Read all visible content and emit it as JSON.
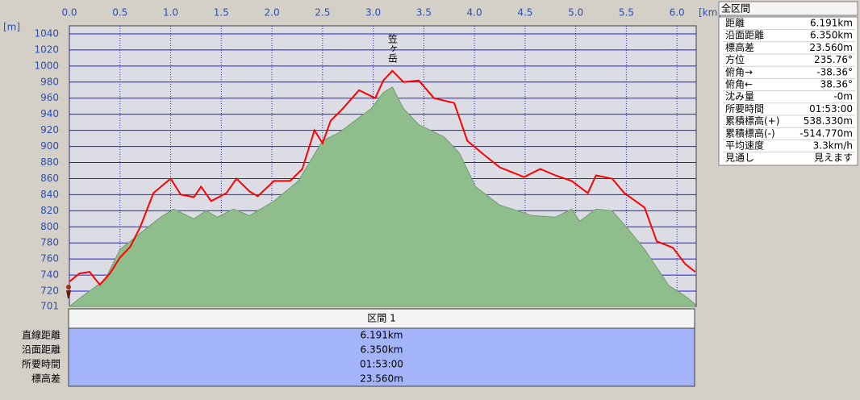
{
  "chart_data": {
    "type": "profile",
    "x_unit": "[km]",
    "y_unit": "[m]",
    "annotation": "笠ヶ岳",
    "annotation_x": 3.19,
    "xlim": [
      0,
      6.19
    ],
    "ylim": [
      701,
      1050
    ],
    "xticks": [
      {
        "value": 0,
        "label": "0.0"
      },
      0.5,
      {
        "value": 1,
        "label": "1.0"
      },
      1.5,
      {
        "value": 2,
        "label": "2.0"
      },
      2.5,
      {
        "value": 3,
        "label": "3.0"
      },
      3.5,
      {
        "value": 4,
        "label": "4.0"
      },
      4.5,
      {
        "value": 5,
        "label": "5.0"
      },
      5.5,
      {
        "value": 6,
        "label": "6.0"
      }
    ],
    "yticks": [
      701,
      720,
      740,
      760,
      780,
      800,
      820,
      840,
      860,
      880,
      900,
      920,
      940,
      960,
      980,
      1000,
      1020,
      1040
    ],
    "grid": true,
    "series": [
      {
        "style": "area",
        "color": "#8fbd8c",
        "x": [
          0,
          0.11,
          0.35,
          0.5,
          0.75,
          0.9,
          1.03,
          1.23,
          1.35,
          1.46,
          1.62,
          1.78,
          2.02,
          2.26,
          2.5,
          2.66,
          2.82,
          2.98,
          3.1,
          3.19,
          3.3,
          3.45,
          3.7,
          3.85,
          4.01,
          4.25,
          4.57,
          4.8,
          4.96,
          5.04,
          5.2,
          5.36,
          5.52,
          5.68,
          5.92,
          6.08,
          6.18
        ],
        "values": [
          701,
          712,
          734,
          772,
          797,
          812,
          822,
          810,
          820,
          812,
          822,
          814,
          832,
          857,
          907,
          917,
          932,
          947,
          967,
          974,
          947,
          927,
          912,
          892,
          850,
          827,
          814,
          812,
          822,
          807,
          822,
          820,
          797,
          772,
          727,
          714,
          704
        ]
      },
      {
        "style": "line",
        "color": "#ff0000",
        "x": [
          0,
          0.1,
          0.2,
          0.3,
          0.4,
          0.5,
          0.6,
          0.7,
          0.83,
          1.0,
          1.1,
          1.23,
          1.3,
          1.4,
          1.55,
          1.65,
          1.78,
          1.86,
          2.02,
          2.18,
          2.3,
          2.42,
          2.5,
          2.58,
          2.7,
          2.86,
          3.02,
          3.1,
          3.19,
          3.3,
          3.45,
          3.6,
          3.8,
          3.93,
          4.09,
          4.25,
          4.49,
          4.65,
          4.8,
          4.96,
          5.12,
          5.2,
          5.36,
          5.48,
          5.68,
          5.8,
          5.96,
          6.08,
          6.18
        ],
        "values": [
          732,
          742,
          744,
          728,
          742,
          762,
          775,
          800,
          842,
          860,
          840,
          837,
          850,
          832,
          842,
          860,
          844,
          838,
          857,
          857,
          872,
          920,
          904,
          932,
          947,
          970,
          960,
          982,
          994,
          980,
          982,
          960,
          954,
          907,
          890,
          874,
          862,
          872,
          864,
          857,
          842,
          864,
          860,
          842,
          824,
          782,
          774,
          754,
          744
        ]
      }
    ]
  },
  "section": {
    "header": "区間 1",
    "rows": [
      [
        "直線距離",
        "6.191km"
      ],
      [
        "沿面距離",
        "6.350km"
      ],
      [
        "所要時間",
        "01:53:00"
      ],
      [
        "標高差",
        "23.560m"
      ]
    ]
  },
  "summary": {
    "title": "全区間",
    "rows": [
      [
        "距離",
        "6.191km"
      ],
      [
        "沿面距離",
        "6.350km"
      ],
      [
        "標高差",
        "23.560m"
      ],
      [
        "方位",
        "235.76°"
      ],
      [
        "俯角→",
        "-38.36°"
      ],
      [
        "俯角←",
        "38.36°"
      ],
      [
        "沈み量",
        "-0m"
      ],
      [
        "所要時間",
        "01:53:00"
      ],
      [
        "累積標高(+)",
        "538.330m"
      ],
      [
        "累積標高(-)",
        "-514.770m"
      ],
      [
        "平均速度",
        "3.3km/h"
      ],
      [
        "見通し",
        "見えます"
      ]
    ]
  }
}
